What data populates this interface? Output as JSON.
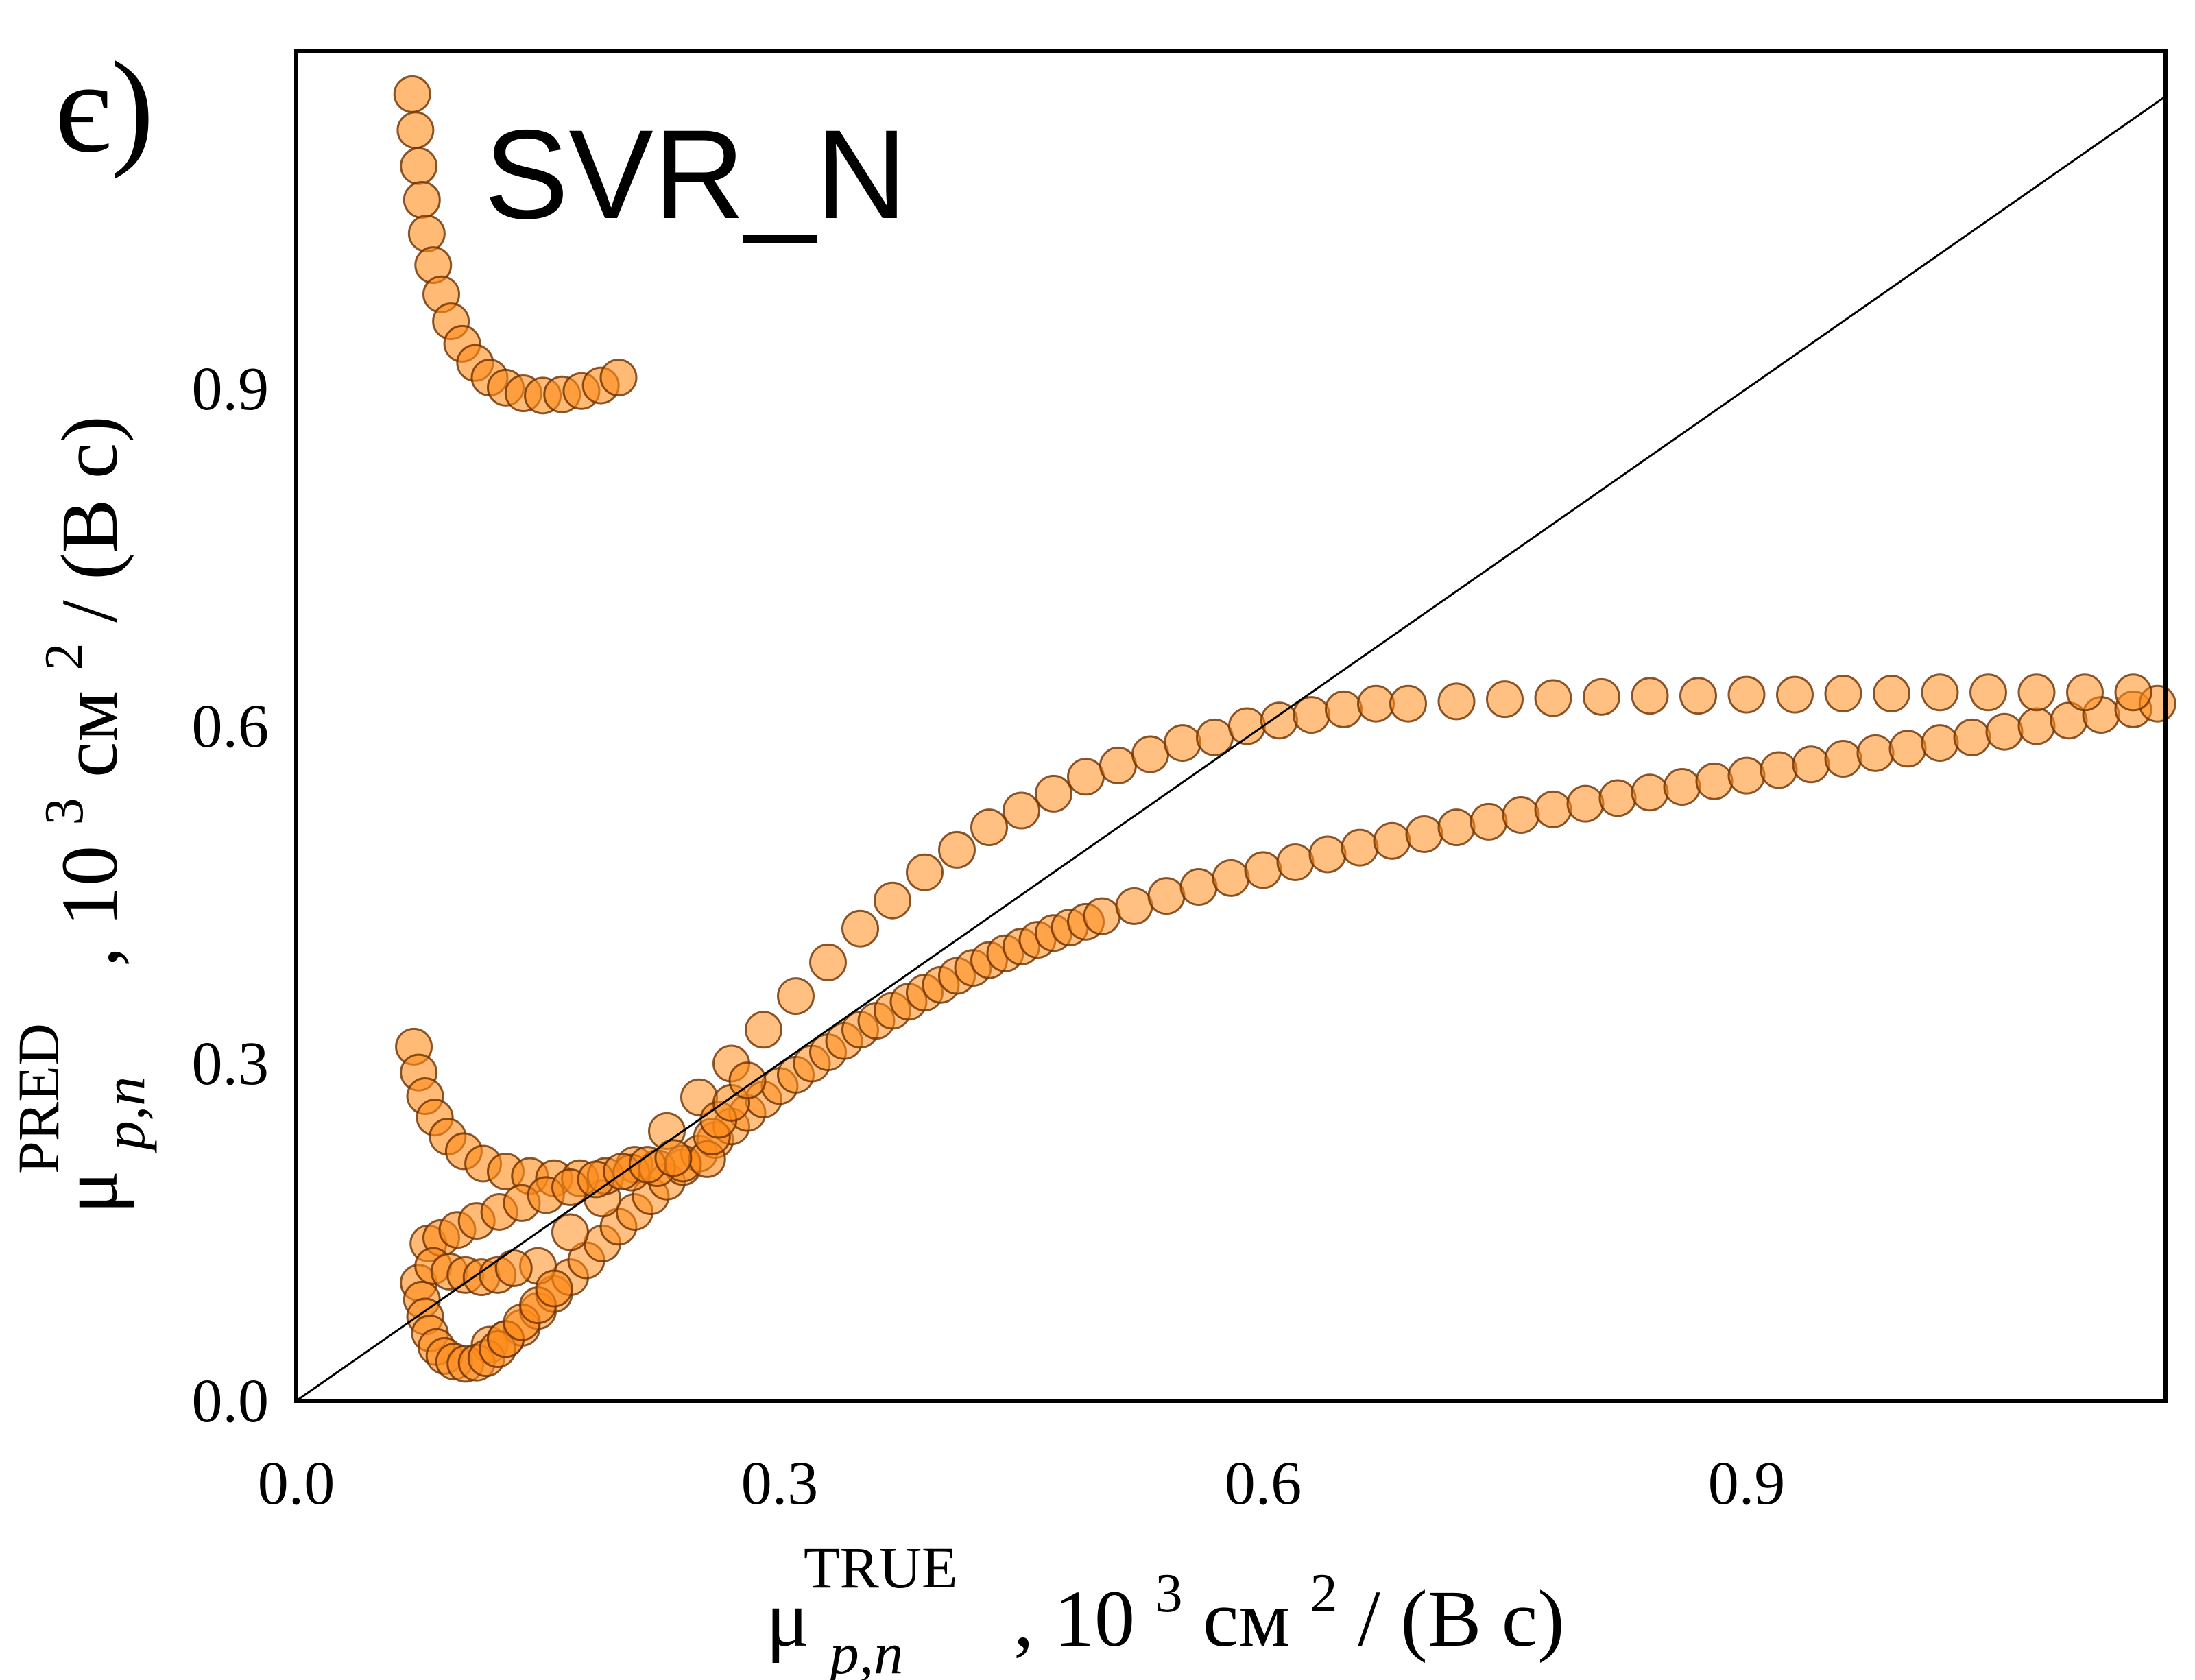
{
  "chart_data": {
    "type": "scatter",
    "panel_label": "є)",
    "model_label": "SVR_N",
    "xlabel": {
      "mu": "μ",
      "sup": "TRUE",
      "sub": "p,n",
      "units_pre": ",  10",
      "exp3": "3",
      "units_mid": " см",
      "exp2": "2",
      "units_post": "/ (В с)"
    },
    "ylabel": {
      "mu": "μ",
      "sup": "PRED",
      "sub": "p,n",
      "units_pre": ",  10",
      "exp3": "3",
      "units_mid": " см",
      "exp2": "2",
      "units_post": "/ (В с)"
    },
    "xlim": [
      0.0,
      1.16
    ],
    "ylim": [
      0.0,
      1.2
    ],
    "xticks": [
      "0.0",
      "0.3",
      "0.6",
      "0.9"
    ],
    "yticks": [
      "0.0",
      "0.3",
      "0.6",
      "0.9"
    ],
    "reference_line": "y = x",
    "marker_color": "#ff8c1a",
    "marker_edge": "#6b3000",
    "grid": false,
    "series": [
      {
        "points": [
          [
            0.072,
            1.162
          ],
          [
            0.074,
            1.13
          ],
          [
            0.076,
            1.098
          ],
          [
            0.078,
            1.068
          ],
          [
            0.081,
            1.038
          ],
          [
            0.085,
            1.01
          ],
          [
            0.09,
            0.984
          ],
          [
            0.096,
            0.96
          ],
          [
            0.103,
            0.94
          ],
          [
            0.111,
            0.923
          ],
          [
            0.12,
            0.91
          ],
          [
            0.13,
            0.901
          ],
          [
            0.141,
            0.896
          ],
          [
            0.153,
            0.894
          ],
          [
            0.165,
            0.895
          ],
          [
            0.177,
            0.898
          ],
          [
            0.189,
            0.903
          ],
          [
            0.2,
            0.91
          ]
        ]
      },
      {
        "points": [
          [
            0.073,
            0.315
          ],
          [
            0.076,
            0.292
          ],
          [
            0.08,
            0.271
          ],
          [
            0.086,
            0.252
          ],
          [
            0.094,
            0.235
          ],
          [
            0.104,
            0.222
          ],
          [
            0.116,
            0.211
          ],
          [
            0.13,
            0.204
          ],
          [
            0.145,
            0.2
          ],
          [
            0.16,
            0.198
          ],
          [
            0.176,
            0.198
          ],
          [
            0.192,
            0.2
          ],
          [
            0.208,
            0.203
          ],
          [
            0.224,
            0.207
          ],
          [
            0.24,
            0.211
          ],
          [
            0.255,
            0.215
          ],
          [
            0.258,
            0.235
          ],
          [
            0.262,
            0.25
          ],
          [
            0.27,
            0.265
          ],
          [
            0.28,
            0.285
          ]
        ]
      },
      {
        "points": [
          [
            0.082,
            0.14
          ],
          [
            0.09,
            0.145
          ],
          [
            0.1,
            0.152
          ],
          [
            0.112,
            0.16
          ],
          [
            0.126,
            0.168
          ],
          [
            0.14,
            0.176
          ],
          [
            0.155,
            0.183
          ],
          [
            0.17,
            0.19
          ],
          [
            0.186,
            0.197
          ],
          [
            0.202,
            0.204
          ],
          [
            0.218,
            0.21
          ],
          [
            0.234,
            0.216
          ]
        ]
      },
      {
        "points": [
          [
            0.076,
            0.105
          ],
          [
            0.078,
            0.09
          ],
          [
            0.08,
            0.075
          ],
          [
            0.083,
            0.06
          ],
          [
            0.087,
            0.048
          ],
          [
            0.092,
            0.04
          ],
          [
            0.098,
            0.035
          ],
          [
            0.105,
            0.033
          ],
          [
            0.112,
            0.034
          ],
          [
            0.118,
            0.038
          ],
          [
            0.125,
            0.046
          ],
          [
            0.13,
            0.055
          ],
          [
            0.14,
            0.07
          ],
          [
            0.15,
            0.085
          ],
          [
            0.16,
            0.1
          ]
        ]
      },
      {
        "points": [
          [
            0.085,
            0.12
          ],
          [
            0.095,
            0.115
          ],
          [
            0.105,
            0.112
          ],
          [
            0.115,
            0.11
          ],
          [
            0.125,
            0.112
          ],
          [
            0.135,
            0.118
          ]
        ]
      }
    ],
    "band_points": [
      [
        0.12,
        0.05
      ],
      [
        0.13,
        0.055
      ],
      [
        0.14,
        0.065
      ],
      [
        0.15,
        0.08
      ],
      [
        0.16,
        0.095
      ],
      [
        0.17,
        0.11
      ],
      [
        0.18,
        0.125
      ],
      [
        0.19,
        0.14
      ],
      [
        0.2,
        0.155
      ],
      [
        0.21,
        0.168
      ],
      [
        0.22,
        0.182
      ],
      [
        0.23,
        0.195
      ],
      [
        0.24,
        0.208
      ],
      [
        0.25,
        0.22
      ],
      [
        0.26,
        0.232
      ],
      [
        0.27,
        0.244
      ],
      [
        0.28,
        0.256
      ],
      [
        0.29,
        0.268
      ],
      [
        0.3,
        0.28
      ],
      [
        0.31,
        0.29
      ],
      [
        0.32,
        0.3
      ],
      [
        0.33,
        0.31
      ],
      [
        0.34,
        0.32
      ],
      [
        0.35,
        0.33
      ],
      [
        0.36,
        0.338
      ],
      [
        0.37,
        0.347
      ],
      [
        0.38,
        0.355
      ],
      [
        0.39,
        0.363
      ],
      [
        0.4,
        0.37
      ],
      [
        0.41,
        0.378
      ],
      [
        0.42,
        0.385
      ],
      [
        0.43,
        0.392
      ],
      [
        0.44,
        0.398
      ],
      [
        0.45,
        0.404
      ],
      [
        0.46,
        0.41
      ],
      [
        0.47,
        0.416
      ],
      [
        0.48,
        0.421
      ],
      [
        0.49,
        0.426
      ],
      [
        0.5,
        0.431
      ],
      [
        0.52,
        0.44
      ],
      [
        0.54,
        0.449
      ],
      [
        0.56,
        0.457
      ],
      [
        0.58,
        0.465
      ],
      [
        0.6,
        0.472
      ],
      [
        0.62,
        0.479
      ],
      [
        0.64,
        0.486
      ],
      [
        0.66,
        0.492
      ],
      [
        0.68,
        0.498
      ],
      [
        0.7,
        0.504
      ],
      [
        0.72,
        0.51
      ],
      [
        0.74,
        0.515
      ],
      [
        0.76,
        0.521
      ],
      [
        0.78,
        0.526
      ],
      [
        0.8,
        0.531
      ],
      [
        0.82,
        0.536
      ],
      [
        0.84,
        0.541
      ],
      [
        0.86,
        0.546
      ],
      [
        0.88,
        0.551
      ],
      [
        0.9,
        0.556
      ],
      [
        0.92,
        0.561
      ],
      [
        0.94,
        0.566
      ],
      [
        0.96,
        0.571
      ],
      [
        0.98,
        0.576
      ],
      [
        1.0,
        0.58
      ],
      [
        1.02,
        0.585
      ],
      [
        1.04,
        0.59
      ],
      [
        1.06,
        0.595
      ],
      [
        1.08,
        0.6
      ],
      [
        1.1,
        0.605
      ],
      [
        1.12,
        0.61
      ],
      [
        1.14,
        0.615
      ],
      [
        1.155,
        0.62
      ],
      [
        0.15,
        0.12
      ],
      [
        0.17,
        0.15
      ],
      [
        0.19,
        0.18
      ],
      [
        0.21,
        0.21
      ],
      [
        0.23,
        0.24
      ],
      [
        0.25,
        0.27
      ],
      [
        0.27,
        0.3
      ],
      [
        0.29,
        0.33
      ],
      [
        0.31,
        0.36
      ],
      [
        0.33,
        0.39
      ],
      [
        0.35,
        0.42
      ],
      [
        0.37,
        0.445
      ],
      [
        0.39,
        0.47
      ],
      [
        0.41,
        0.49
      ],
      [
        0.43,
        0.51
      ],
      [
        0.45,
        0.525
      ],
      [
        0.47,
        0.54
      ],
      [
        0.49,
        0.555
      ],
      [
        0.51,
        0.565
      ],
      [
        0.53,
        0.575
      ],
      [
        0.55,
        0.585
      ],
      [
        0.57,
        0.59
      ],
      [
        0.59,
        0.6
      ],
      [
        0.61,
        0.605
      ],
      [
        0.63,
        0.61
      ],
      [
        0.65,
        0.615
      ],
      [
        0.67,
        0.62
      ],
      [
        0.69,
        0.62
      ],
      [
        0.72,
        0.622
      ],
      [
        0.75,
        0.624
      ],
      [
        0.78,
        0.625
      ],
      [
        0.81,
        0.626
      ],
      [
        0.84,
        0.627
      ],
      [
        0.87,
        0.627
      ],
      [
        0.9,
        0.628
      ],
      [
        0.93,
        0.628
      ],
      [
        0.96,
        0.629
      ],
      [
        0.99,
        0.629
      ],
      [
        1.02,
        0.63
      ],
      [
        1.05,
        0.63
      ],
      [
        1.08,
        0.63
      ],
      [
        1.11,
        0.63
      ],
      [
        1.14,
        0.63
      ]
    ]
  }
}
